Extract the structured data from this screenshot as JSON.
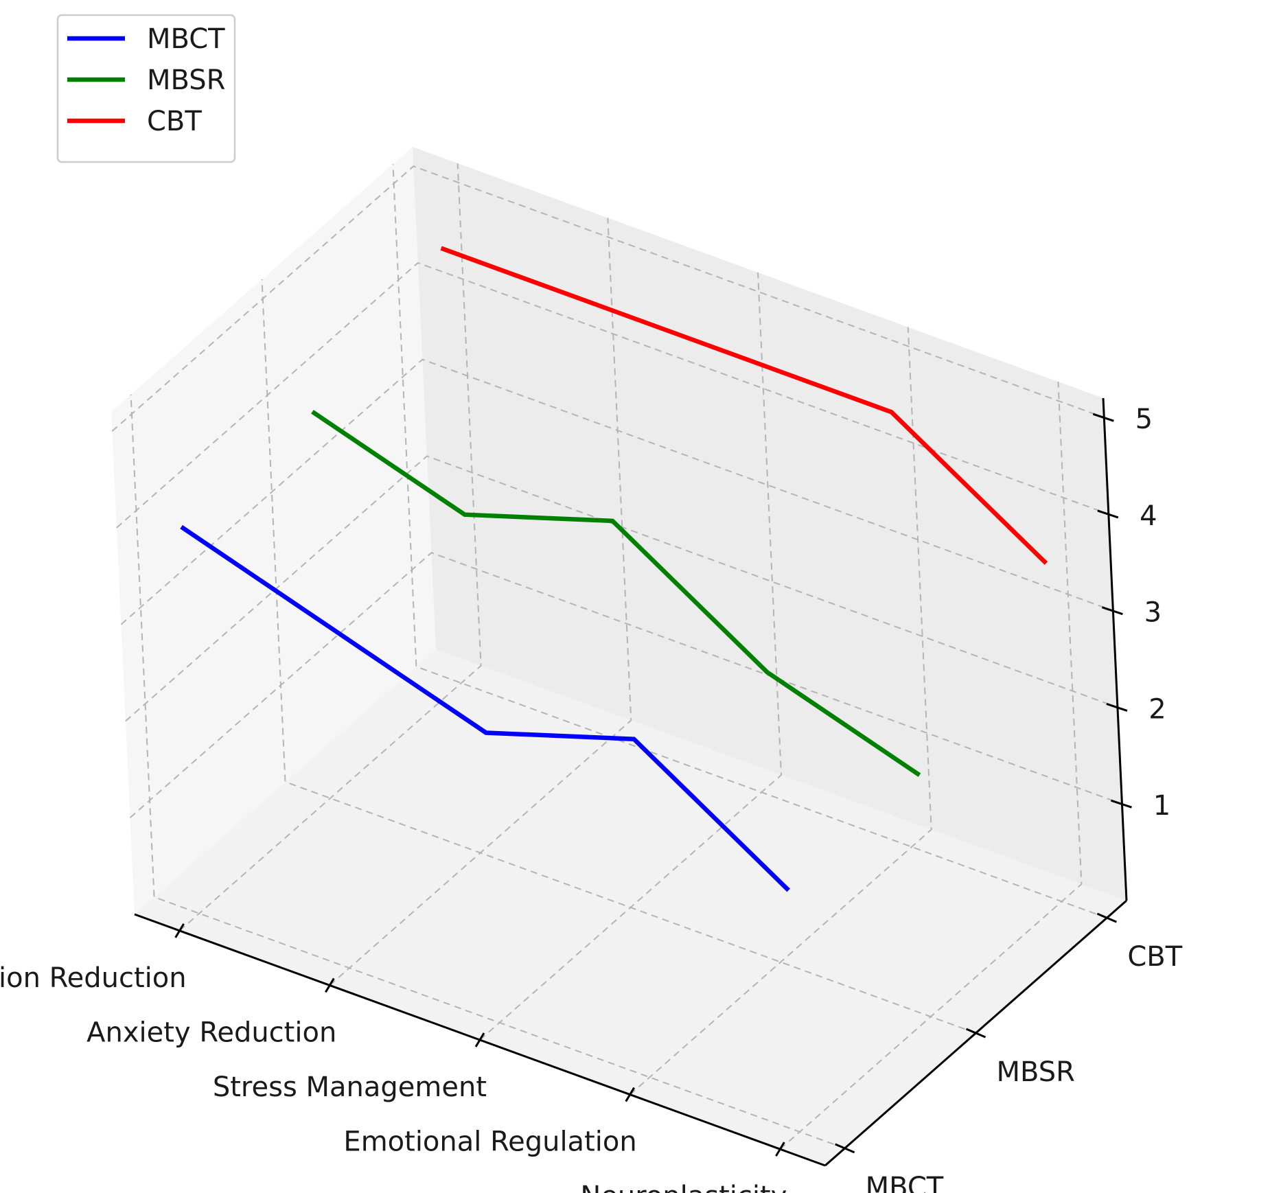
{
  "chart_data": {
    "type": "line",
    "projection": "3d",
    "x_categories": [
      "Depression Reduction",
      "Anxiety Reduction",
      "Stress Management",
      "Emotional Regulation",
      "Neuroplasticity"
    ],
    "y_categories": [
      "MBCT",
      "MBSR",
      "CBT"
    ],
    "z_ticks": [
      1,
      2,
      3,
      4,
      5
    ],
    "series": [
      {
        "name": "MBCT",
        "y_category": "MBCT",
        "color": "#0000ff",
        "values": [
          4.0,
          3.5,
          3.0,
          3.5,
          2.5
        ]
      },
      {
        "name": "MBSR",
        "y_category": "MBSR",
        "color": "#008000",
        "values": [
          4.0,
          3.5,
          4.0,
          3.0,
          2.5
        ]
      },
      {
        "name": "CBT",
        "y_category": "CBT",
        "color": "#ff0000",
        "values": [
          4.5,
          4.5,
          4.5,
          4.5,
          3.5
        ]
      }
    ],
    "legend": {
      "position": "top-left",
      "entries": [
        {
          "label": "MBCT",
          "color": "#0000ff"
        },
        {
          "label": "MBSR",
          "color": "#008000"
        },
        {
          "label": "CBT",
          "color": "#ff0000"
        }
      ]
    },
    "grid": true
  }
}
